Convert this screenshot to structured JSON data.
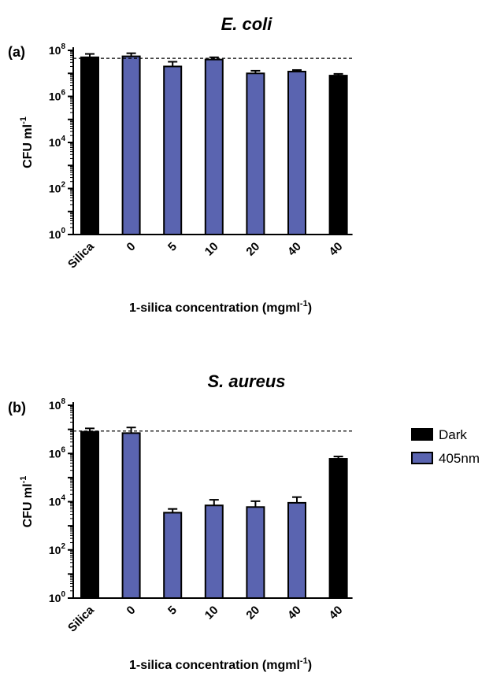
{
  "chart_data": [
    {
      "type": "bar",
      "panel": "(a)",
      "title": "E. coli",
      "categories": [
        "Silica",
        "0",
        "5",
        "10",
        "20",
        "40",
        "40"
      ],
      "bar_groups": [
        "Dark",
        "405nm",
        "405nm",
        "405nm",
        "405nm",
        "405nm",
        "Dark"
      ],
      "values": [
        50000000,
        55000000,
        20000000,
        40000000,
        10000000,
        12000000,
        8000000
      ],
      "error_upper": [
        70000000,
        75000000,
        32000000,
        50000000,
        13000000,
        14000000,
        9500000
      ],
      "reference_line": 45000000,
      "ylabel_base": "CFU ml",
      "ylabel_exp": "-1",
      "xlabel_base": "1-silica concentration (mgml",
      "xlabel_exp": "-1",
      "xlabel_tail": ")",
      "yscale": "log",
      "ylim": [
        1,
        100000000
      ],
      "yticks": [
        {
          "base": "10",
          "exp": "0",
          "value": 1
        },
        {
          "base": "10",
          "exp": "2",
          "value": 100
        },
        {
          "base": "10",
          "exp": "4",
          "value": 10000
        },
        {
          "base": "10",
          "exp": "6",
          "value": 1000000
        },
        {
          "base": "10",
          "exp": "8",
          "value": 100000000
        }
      ]
    },
    {
      "type": "bar",
      "panel": "(b)",
      "title": "S. aureus",
      "categories": [
        "Silica",
        "0",
        "5",
        "10",
        "20",
        "40",
        "40"
      ],
      "bar_groups": [
        "Dark",
        "405nm",
        "405nm",
        "405nm",
        "405nm",
        "405nm",
        "Dark"
      ],
      "values": [
        8000000,
        7000000,
        3500,
        7000,
        6000,
        9000,
        600000
      ],
      "error_upper": [
        11000000,
        12000000,
        5000,
        12000,
        10500,
        15500,
        750000
      ],
      "reference_line": 8500000,
      "ylabel_base": "CFU ml",
      "ylabel_exp": "-1",
      "xlabel_base": "1-silica concentration (mgml",
      "xlabel_exp": "-1",
      "xlabel_tail": ")",
      "yscale": "log",
      "ylim": [
        1,
        100000000
      ],
      "yticks": [
        {
          "base": "10",
          "exp": "0",
          "value": 1
        },
        {
          "base": "10",
          "exp": "2",
          "value": 100
        },
        {
          "base": "10",
          "exp": "4",
          "value": 10000
        },
        {
          "base": "10",
          "exp": "6",
          "value": 1000000
        },
        {
          "base": "10",
          "exp": "8",
          "value": 100000000
        }
      ]
    }
  ],
  "legend": {
    "placement": "right",
    "items": [
      {
        "label": "Dark",
        "color": "#000000"
      },
      {
        "label": "405nm",
        "color": "#5a64b0"
      }
    ]
  },
  "colors": {
    "dark": "#000000",
    "light405": "#5a64b0"
  }
}
